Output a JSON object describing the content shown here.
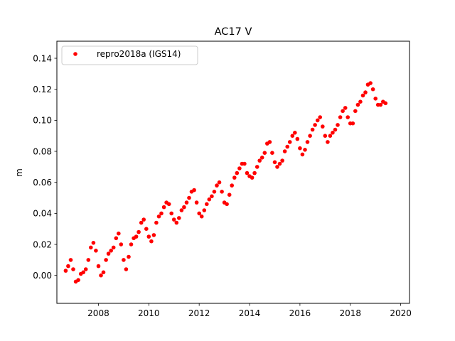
{
  "chart_data": {
    "type": "scatter",
    "title": "AC17 V",
    "xlabel": "",
    "ylabel": "m",
    "xlim": [
      2006.35,
      2020.35
    ],
    "ylim": [
      -0.018,
      0.151
    ],
    "xticks": [
      2008,
      2010,
      2012,
      2014,
      2016,
      2018,
      2020
    ],
    "yticks": [
      0.0,
      0.02,
      0.04,
      0.06,
      0.08,
      0.1,
      0.12,
      0.14
    ],
    "ytick_labels": [
      "0.00",
      "0.02",
      "0.04",
      "0.06",
      "0.08",
      "0.10",
      "0.12",
      "0.14"
    ],
    "legend": {
      "position": "top-left"
    },
    "grid": false,
    "marker_color": "#ff0000",
    "series": [
      {
        "name": "repro2018a (IGS14)",
        "color": "#ff0000",
        "x": [
          2006.7,
          2006.8,
          2006.9,
          2007.0,
          2007.1,
          2007.2,
          2007.3,
          2007.4,
          2007.5,
          2007.6,
          2007.7,
          2007.8,
          2007.9,
          2008.0,
          2008.1,
          2008.2,
          2008.3,
          2008.4,
          2008.5,
          2008.6,
          2008.7,
          2008.8,
          2008.9,
          2009.0,
          2009.1,
          2009.2,
          2009.3,
          2009.4,
          2009.5,
          2009.6,
          2009.7,
          2009.8,
          2009.9,
          2010.0,
          2010.1,
          2010.2,
          2010.3,
          2010.4,
          2010.5,
          2010.6,
          2010.7,
          2010.8,
          2010.9,
          2011.0,
          2011.1,
          2011.2,
          2011.3,
          2011.4,
          2011.5,
          2011.6,
          2011.7,
          2011.8,
          2011.9,
          2012.0,
          2012.1,
          2012.2,
          2012.3,
          2012.4,
          2012.5,
          2012.6,
          2012.7,
          2012.8,
          2012.9,
          2013.0,
          2013.1,
          2013.2,
          2013.3,
          2013.4,
          2013.5,
          2013.6,
          2013.7,
          2013.8,
          2013.9,
          2014.0,
          2014.1,
          2014.2,
          2014.3,
          2014.4,
          2014.5,
          2014.6,
          2014.7,
          2014.8,
          2014.9,
          2015.0,
          2015.1,
          2015.2,
          2015.3,
          2015.4,
          2015.5,
          2015.6,
          2015.7,
          2015.8,
          2015.9,
          2016.0,
          2016.1,
          2016.2,
          2016.3,
          2016.4,
          2016.5,
          2016.6,
          2016.7,
          2016.8,
          2016.9,
          2017.0,
          2017.1,
          2017.2,
          2017.3,
          2017.4,
          2017.5,
          2017.6,
          2017.7,
          2017.8,
          2017.9,
          2018.0,
          2018.1,
          2018.2,
          2018.3,
          2018.4,
          2018.5,
          2018.6,
          2018.7,
          2018.8,
          2018.9,
          2019.0,
          2019.1,
          2019.2,
          2019.3,
          2019.4
        ],
        "y": [
          0.003,
          0.006,
          0.01,
          0.004,
          -0.004,
          -0.003,
          0.001,
          0.002,
          0.004,
          0.01,
          0.018,
          0.021,
          0.016,
          0.006,
          0.0,
          0.002,
          0.01,
          0.014,
          0.016,
          0.018,
          0.024,
          0.027,
          0.02,
          0.01,
          0.004,
          0.012,
          0.02,
          0.024,
          0.025,
          0.028,
          0.034,
          0.036,
          0.03,
          0.025,
          0.022,
          0.026,
          0.034,
          0.038,
          0.04,
          0.044,
          0.047,
          0.046,
          0.04,
          0.036,
          0.034,
          0.037,
          0.042,
          0.044,
          0.047,
          0.05,
          0.054,
          0.055,
          0.047,
          0.04,
          0.038,
          0.042,
          0.046,
          0.049,
          0.051,
          0.054,
          0.058,
          0.06,
          0.054,
          0.047,
          0.046,
          0.052,
          0.058,
          0.063,
          0.066,
          0.069,
          0.072,
          0.072,
          0.066,
          0.064,
          0.063,
          0.066,
          0.07,
          0.074,
          0.076,
          0.079,
          0.085,
          0.086,
          0.079,
          0.073,
          0.07,
          0.072,
          0.074,
          0.08,
          0.083,
          0.086,
          0.09,
          0.092,
          0.088,
          0.082,
          0.078,
          0.081,
          0.086,
          0.09,
          0.094,
          0.097,
          0.1,
          0.102,
          0.096,
          0.09,
          0.086,
          0.09,
          0.092,
          0.094,
          0.097,
          0.102,
          0.106,
          0.108,
          0.102,
          0.098,
          0.098,
          0.106,
          0.11,
          0.112,
          0.116,
          0.118,
          0.123,
          0.124,
          0.12,
          0.114,
          0.11,
          0.11,
          0.112,
          0.111
        ]
      }
    ]
  }
}
